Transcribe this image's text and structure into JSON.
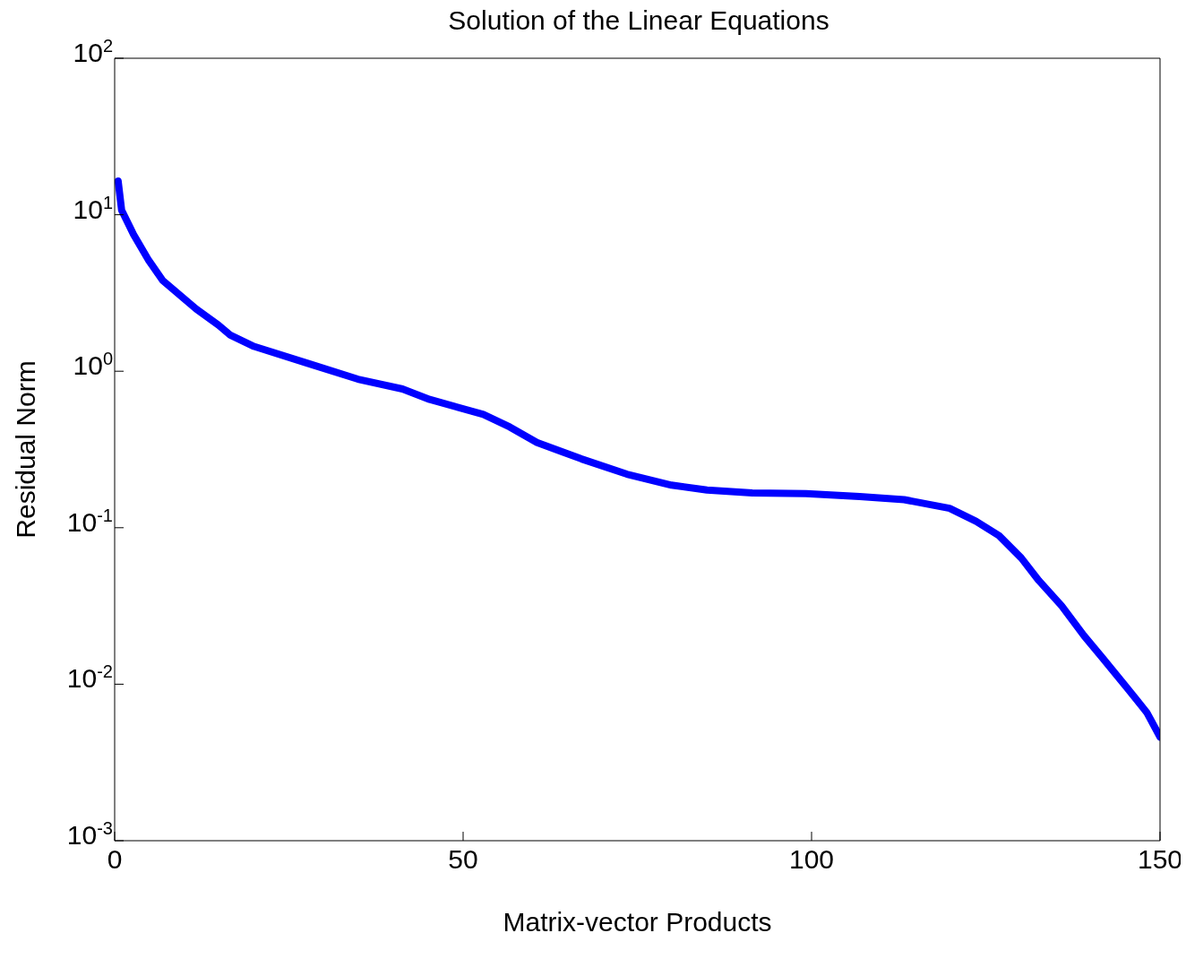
{
  "chart_data": {
    "type": "line",
    "title": "Solution of the Linear Equations",
    "xlabel": "Matrix-vector Products",
    "ylabel": "Residual Norm",
    "x": [
      0.5,
      1,
      2.7,
      4.9,
      6.9,
      11.7,
      14.9,
      16.6,
      20,
      27.8,
      34.9,
      41.3,
      45.2,
      52.9,
      56.7,
      60.6,
      67,
      73.5,
      79.9,
      85,
      91.5,
      99.2,
      106.9,
      113.3,
      119.8,
      123.6,
      126.9,
      130.1,
      132.6,
      135.9,
      139.1,
      141.7,
      145.5,
      148.1,
      150
    ],
    "series": [
      {
        "color": "#0000ff",
        "values": [
          16.4,
          10.7,
          7.5,
          5.1,
          3.8,
          2.5,
          1.97,
          1.7,
          1.44,
          1.12,
          0.89,
          0.77,
          0.66,
          0.53,
          0.44,
          0.35,
          0.275,
          0.22,
          0.187,
          0.174,
          0.167,
          0.165,
          0.158,
          0.151,
          0.133,
          0.11,
          0.089,
          0.064,
          0.046,
          0.0316,
          0.0204,
          0.0148,
          0.0092,
          0.0066,
          0.0046
        ]
      }
    ],
    "xlim": [
      0,
      150
    ],
    "xticks": [
      0,
      50,
      100,
      150
    ],
    "ylim": [
      0.001,
      100
    ],
    "yticks": [
      {
        "value": 0.001,
        "label": "10$^{-3}$"
      },
      {
        "value": 0.01,
        "label": "10$^{-2}$"
      },
      {
        "value": 0.1,
        "label": "10$^{-1}$"
      },
      {
        "value": 1,
        "label": "10$^{0}$"
      },
      {
        "value": 10,
        "label": "10$^{1}$"
      },
      {
        "value": 100,
        "label": "10$^{2}$"
      }
    ],
    "log": "y",
    "grid": false,
    "legend": false,
    "marker": "none",
    "line_style": "solid"
  }
}
